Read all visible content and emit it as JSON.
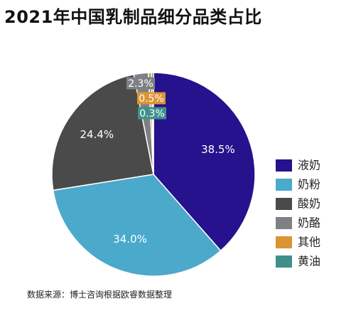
{
  "title": "2021年中国乳制品细分品类占比",
  "source": "数据来源：博士咨询根据欧睿数据整理",
  "chart_data": {
    "type": "pie",
    "title": "2021年中国乳制品细分品类占比",
    "start": "12 o'clock, clockwise",
    "legend_position": "right",
    "slices": [
      {
        "name": "液奶",
        "value": 38.5,
        "label": "38.5%",
        "color": "#26128C"
      },
      {
        "name": "奶粉",
        "value": 34.0,
        "label": "34.0%",
        "color": "#4BA9CB"
      },
      {
        "name": "酸奶",
        "value": 24.4,
        "label": "24.4%",
        "color": "#4A4A4A"
      },
      {
        "name": "奶酪",
        "value": 2.3,
        "label": "2.3%",
        "color": "#7D8084"
      },
      {
        "name": "其他",
        "value": 0.5,
        "label": "0.5%",
        "color": "#DD9433"
      },
      {
        "name": "黄油",
        "value": 0.3,
        "label": "0.3%",
        "color": "#3E918B"
      }
    ]
  }
}
